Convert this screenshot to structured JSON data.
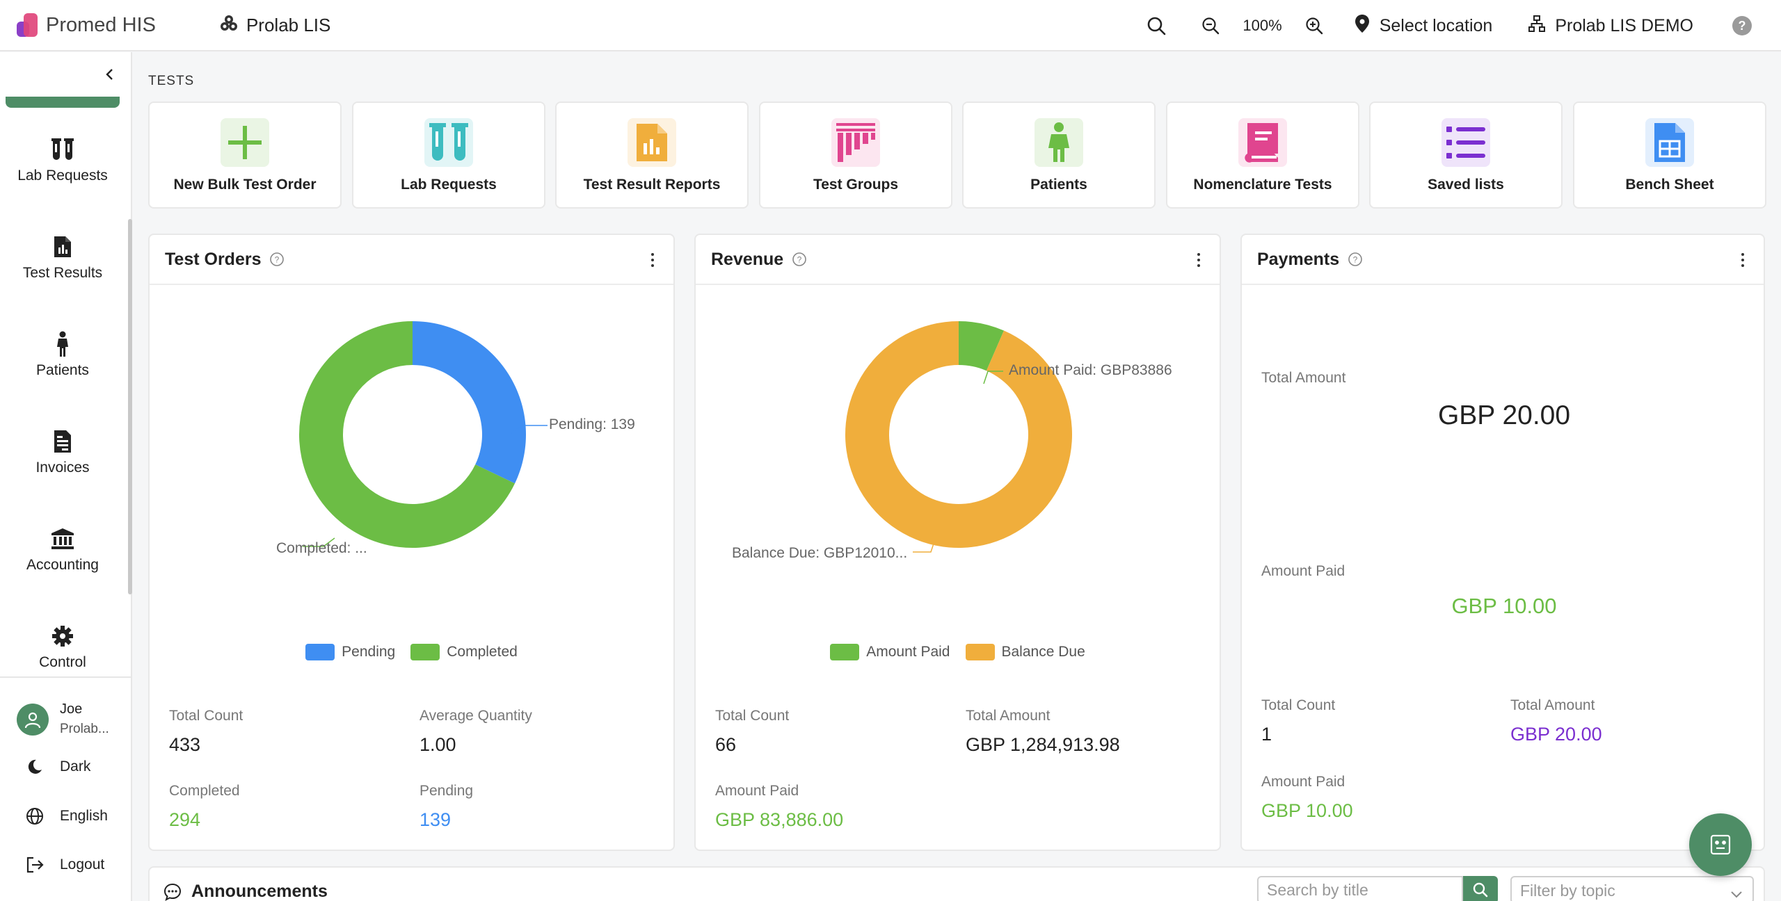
{
  "app": {
    "brand": "Promed HIS",
    "lab": "Prolab LIS"
  },
  "toolbar": {
    "zoom": "100%",
    "location": "Select location",
    "organization": "Prolab LIS DEMO"
  },
  "sidebar": {
    "items": [
      {
        "label": "Lab Requests",
        "icon": "test-tubes-icon"
      },
      {
        "label": "Test Results",
        "icon": "report-icon"
      },
      {
        "label": "Patients",
        "icon": "person-icon"
      },
      {
        "label": "Invoices",
        "icon": "invoice-icon"
      },
      {
        "label": "Accounting",
        "icon": "bank-icon"
      },
      {
        "label": "Control",
        "icon": "gear-icon"
      }
    ],
    "user": {
      "name": "Joe",
      "org": "Prolab..."
    },
    "theme": "Dark",
    "language": "English",
    "logout": "Logout"
  },
  "tests": {
    "section_label": "TESTS",
    "tiles": [
      {
        "label": "New Bulk Test Order",
        "icon": "plus-icon",
        "color": "#6cbd45",
        "bg": "#eaf5e4"
      },
      {
        "label": "Lab Requests",
        "icon": "test-tubes-icon",
        "color": "#3dbcc0",
        "bg": "#e2f5f6"
      },
      {
        "label": "Test Result Reports",
        "icon": "report-icon",
        "color": "#f0ae3c",
        "bg": "#fdf2e0"
      },
      {
        "label": "Test Groups",
        "icon": "grid-icon",
        "color": "#e0458f",
        "bg": "#fce6f0"
      },
      {
        "label": "Patients",
        "icon": "person-icon",
        "color": "#6cbd45",
        "bg": "#eaf5e4"
      },
      {
        "label": "Nomenclature Tests",
        "icon": "book-icon",
        "color": "#e0458f",
        "bg": "#fce6f0"
      },
      {
        "label": "Saved lists",
        "icon": "list-icon",
        "color": "#7b2fd0",
        "bg": "#efe4fa"
      },
      {
        "label": "Bench Sheet",
        "icon": "sheet-icon",
        "color": "#3f8ef2",
        "bg": "#e3effd"
      }
    ]
  },
  "test_orders": {
    "title": "Test Orders",
    "pending_label": "Pending: 139",
    "completed_label": "Completed: ...",
    "legend": [
      "Pending",
      "Completed"
    ],
    "total_count_label": "Total Count",
    "total_count": "433",
    "avg_qty_label": "Average Quantity",
    "avg_qty": "1.00",
    "completed_stat_label": "Completed",
    "completed": "294",
    "pending_stat_label": "Pending",
    "pending": "139"
  },
  "revenue": {
    "title": "Revenue",
    "paid_label": "Amount Paid: GBP83886",
    "due_label": "Balance Due: GBP12010...",
    "legend": [
      "Amount Paid",
      "Balance Due"
    ],
    "total_count_label": "Total Count",
    "total_count": "66",
    "total_amount_label": "Total Amount",
    "total_amount": "GBP 1,284,913.98",
    "amount_paid_label": "Amount Paid",
    "amount_paid": "GBP 83,886.00"
  },
  "payments": {
    "title": "Payments",
    "total_amount_label": "Total Amount",
    "total_amount": "GBP 20.00",
    "amount_paid_label": "Amount Paid",
    "amount_paid": "GBP 10.00",
    "total_count_label": "Total Count",
    "total_count": "1",
    "total_amount_label2": "Total Amount",
    "total_amount2": "GBP 20.00",
    "amount_paid_label2": "Amount Paid",
    "amount_paid2": "GBP 10.00"
  },
  "announcements": {
    "title": "Announcements",
    "search_placeholder": "Search by title",
    "filter_placeholder": "Filter by topic"
  },
  "chart_data": [
    {
      "type": "pie",
      "title": "Test Orders",
      "categories": [
        "Pending",
        "Completed"
      ],
      "values": [
        139,
        294
      ],
      "colors": [
        "#3f8ef2",
        "#6cbd45"
      ]
    },
    {
      "type": "pie",
      "title": "Revenue",
      "categories": [
        "Amount Paid",
        "Balance Due"
      ],
      "values": [
        83886,
        1201027.98
      ],
      "colors": [
        "#6cbd45",
        "#f0ae3c"
      ]
    }
  ]
}
